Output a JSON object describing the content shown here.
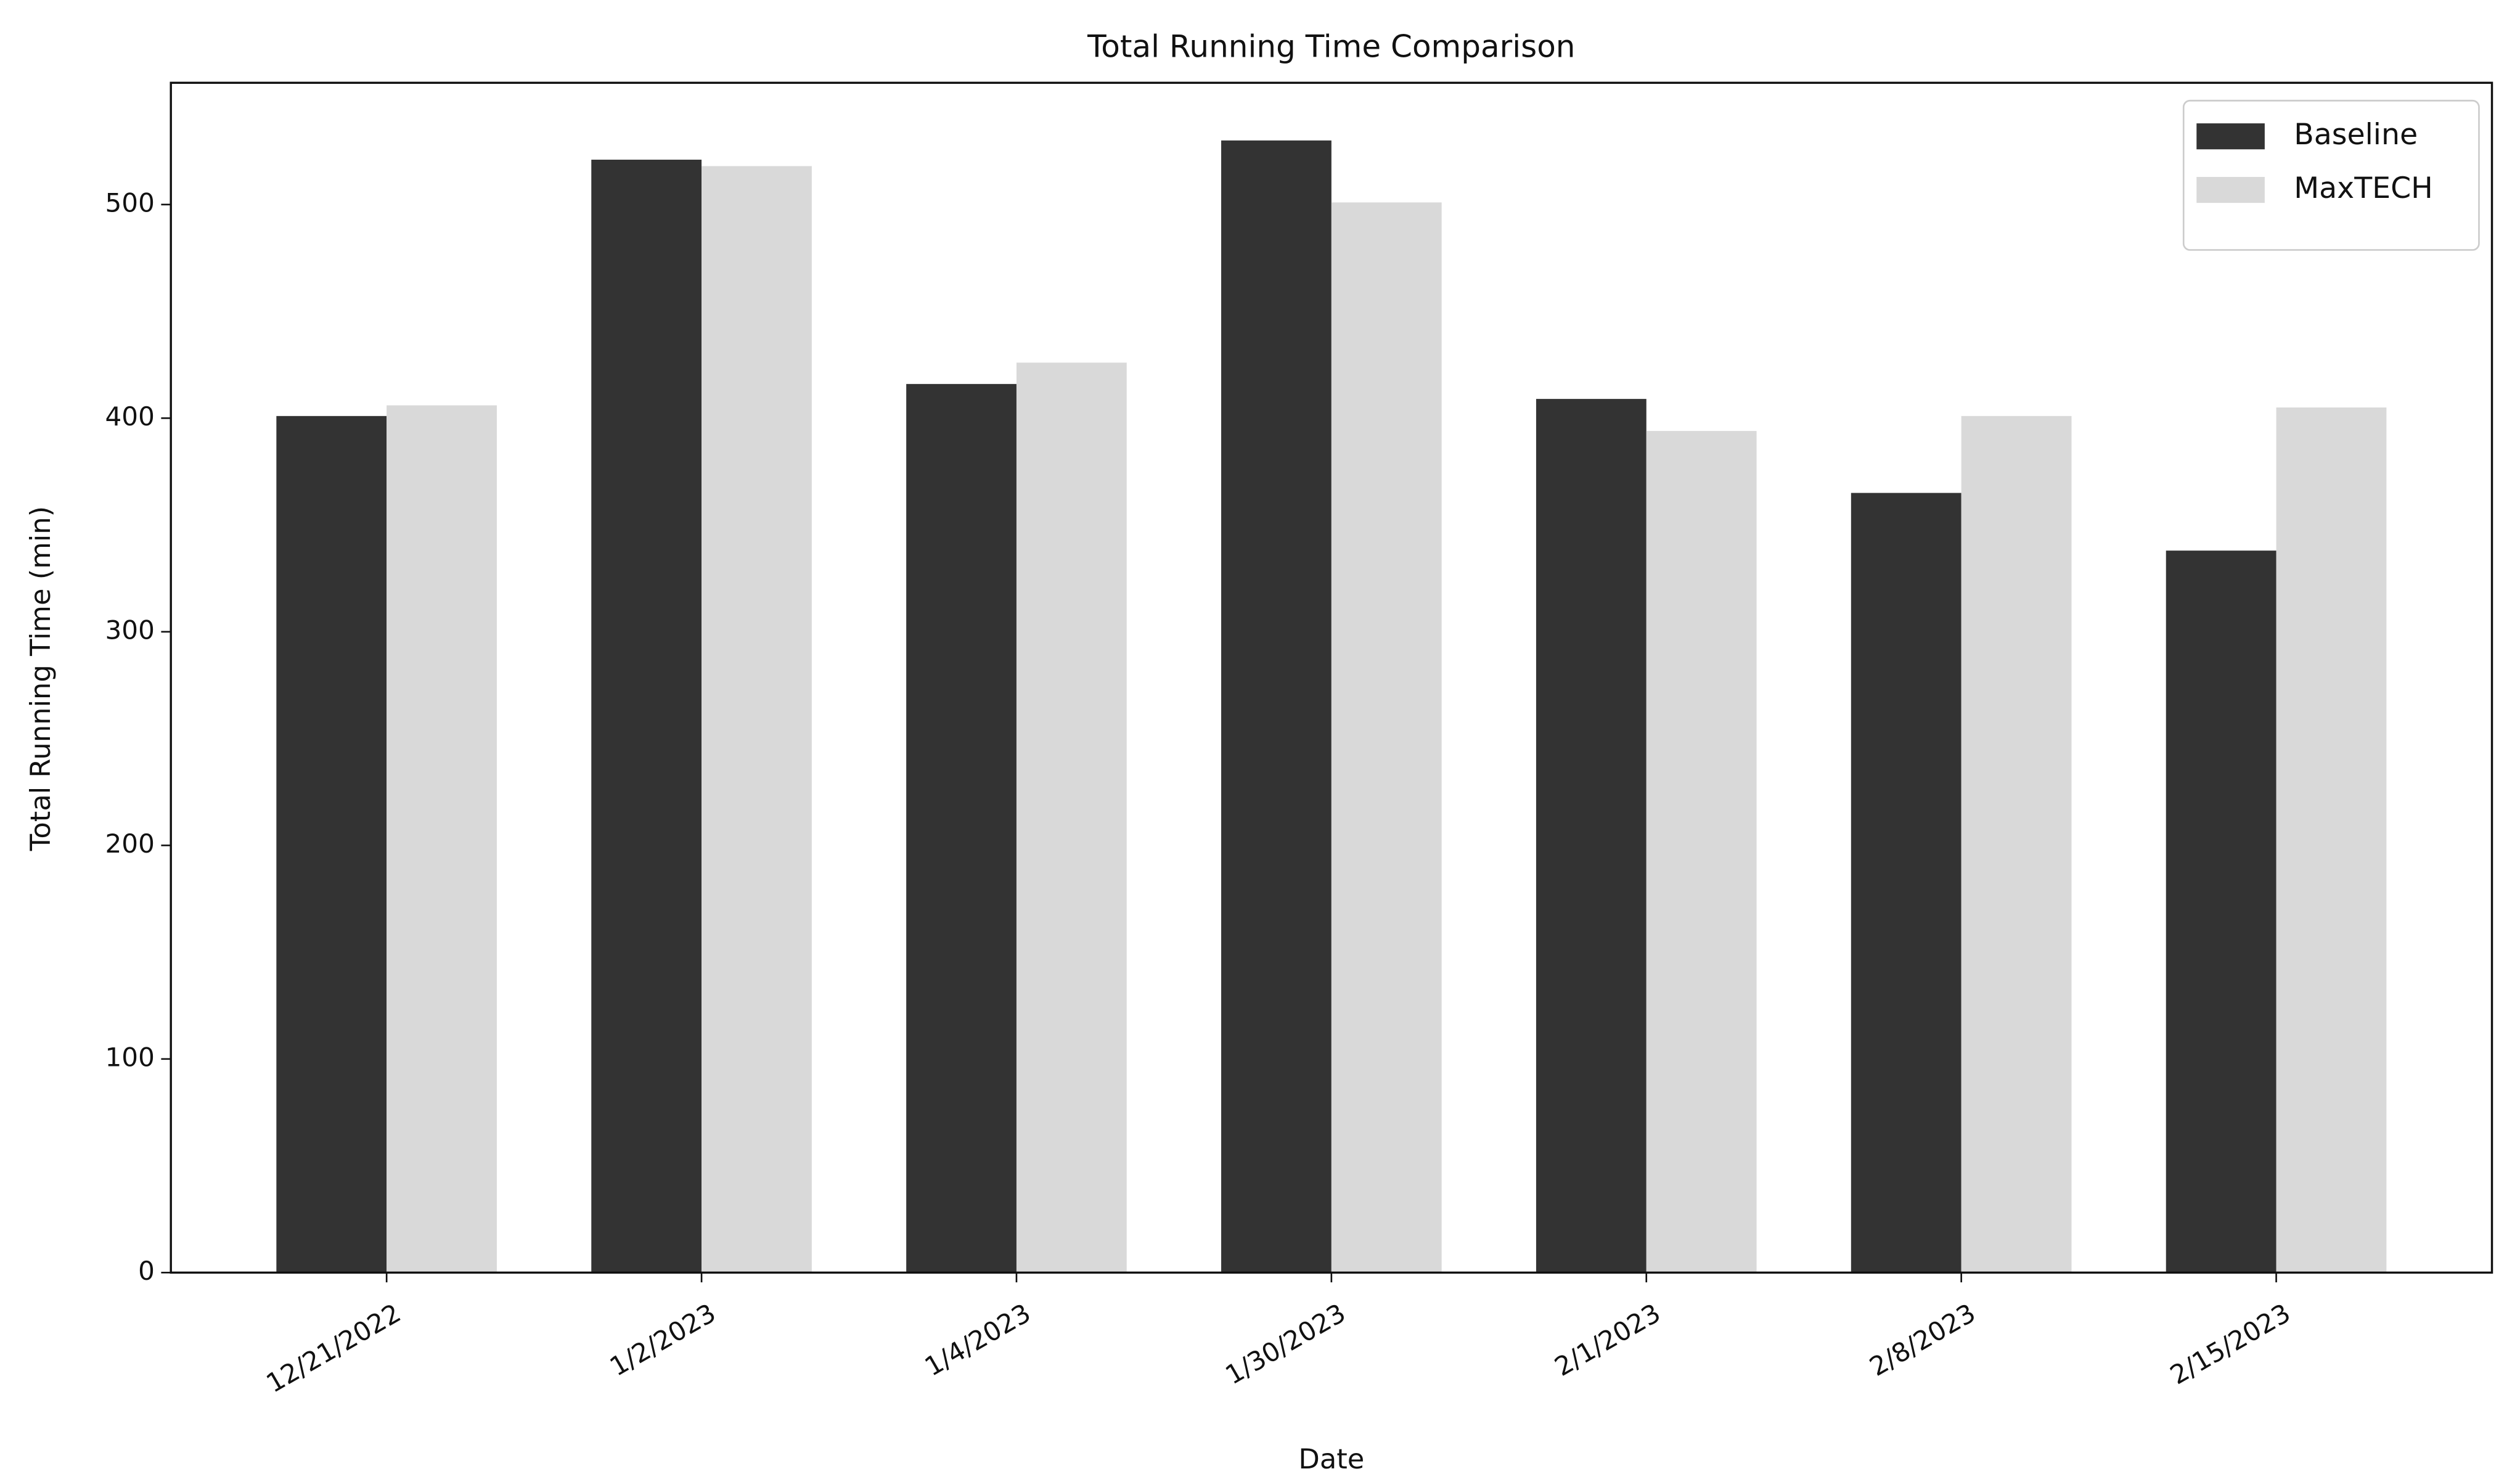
{
  "chart_data": {
    "type": "bar",
    "title": "Total Running Time Comparison",
    "x_label": "Date",
    "y_label": "Total Running Time (min)",
    "categories": [
      "12/21/2022",
      "1/2/2023",
      "1/4/2023",
      "1/30/2023",
      "2/1/2023",
      "2/8/2023",
      "2/15/2023"
    ],
    "series": [
      {
        "name": "Baseline",
        "color": "#333333",
        "values": [
          401,
          521,
          416,
          530,
          409,
          365,
          338
        ]
      },
      {
        "name": "MaxTECH",
        "color": "#d9d9d9",
        "values": [
          406,
          518,
          426,
          501,
          394,
          401,
          405
        ]
      }
    ],
    "ylim": [
      0,
      557
    ],
    "yticks": [
      0,
      100,
      200,
      300,
      400,
      500
    ],
    "legend": "upper-right"
  }
}
